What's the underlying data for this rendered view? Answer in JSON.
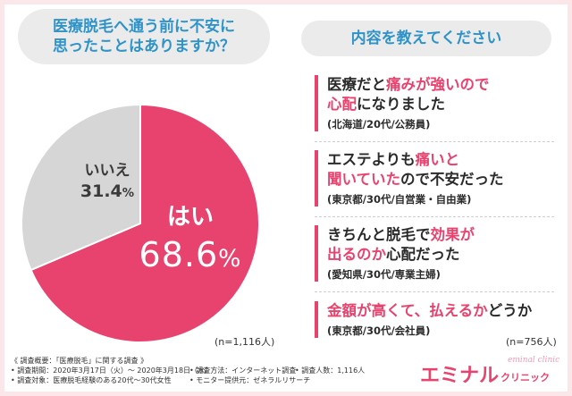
{
  "left": {
    "title_line1": "医療脱毛へ通う前に不安に",
    "title_line2": "思ったことはありますか？",
    "n_label": "(n=1,116人)"
  },
  "chart_data": {
    "type": "pie",
    "title": "医療脱毛へ通う前に不安に思ったことはありますか？",
    "slices": [
      {
        "label": "はい",
        "value": 68.6,
        "display": "68.6",
        "color": "#e8436e"
      },
      {
        "label": "いいえ",
        "value": 31.4,
        "display": "31.4",
        "color": "#d6d6d6"
      }
    ],
    "unit": "%",
    "n": "n=1,116人"
  },
  "right": {
    "title": "内容を教えてください",
    "n_label": "(n=756人)",
    "answers": [
      {
        "seg1": "医療だと",
        "hl1": "痛みが強いので",
        "hl2": "心配",
        "seg2": "になりました",
        "who": "(北海道/20代/公務員)"
      },
      {
        "seg1": "エステよりも",
        "hl1": "痛いと",
        "hl2": "聞いていた",
        "seg2": "ので不安だった",
        "who": "(東京都/30代/自営業・自由業)"
      },
      {
        "seg1": "きちんと脱毛で",
        "hl1": "効果が",
        "hl2": "出るのか",
        "seg2": "心配だった",
        "who": "(愛知県/30代/専業主婦)"
      },
      {
        "seg1": "",
        "hl1": "金額が高くて、払えるか",
        "hl2": "",
        "seg2": "どうか",
        "who": "(東京都/30代/会社員)"
      }
    ]
  },
  "footer": {
    "summary": "《 調査概要：「医療脱毛」に関する調査 》",
    "period": "• 調査期間：2020年3月17日（火）～ 2020年3月18日（水）",
    "method": "• 調査方法：インターネット調査",
    "count": "• 調査人数：1,116人",
    "target": "• 調査対象：医療脱毛経験のある20代～30代女性",
    "provider": "• モニター提供元：ゼネラルリサーチ"
  },
  "logo": {
    "main": "エミナル",
    "sub": "クリニック",
    "script": "eminal clinic"
  },
  "colors": {
    "accent": "#e8436e",
    "title_blue": "#2f93c8",
    "gray_slice": "#d6d6d6",
    "background": "#fbe6ea"
  }
}
